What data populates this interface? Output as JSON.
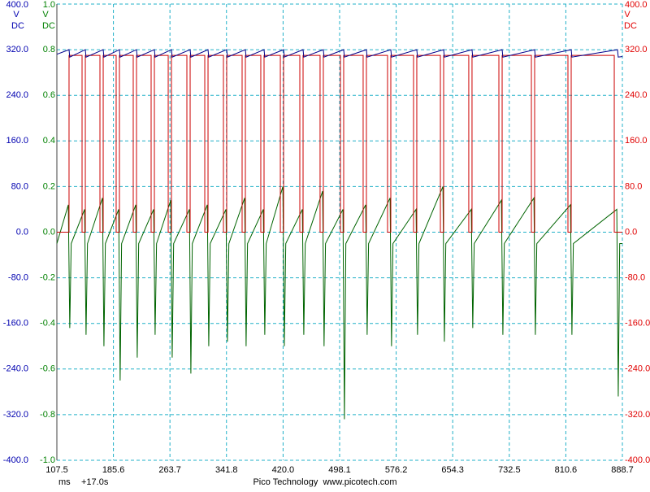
{
  "chart_data": {
    "type": "line",
    "x_unit": "ms",
    "x_offset": "+17.0s",
    "footer": "Pico Technology  www.picotech.com",
    "grid": true,
    "xlim": [
      107.5,
      888.7
    ],
    "xticks": [
      107.5,
      185.6,
      263.7,
      341.8,
      {
        "value": 420,
        "label": "420.0"
      },
      498.1,
      576.2,
      654.3,
      732.5,
      810.6,
      888.7
    ],
    "y_label": "V",
    "y_coupling": "DC",
    "ylim": [
      -400,
      400
    ],
    "yticks": [
      {
        "value": 400,
        "label": "400.0"
      },
      {
        "value": 320,
        "label": "320.0"
      },
      {
        "value": 240,
        "label": "240.0"
      },
      {
        "value": 160,
        "label": "160.0"
      },
      {
        "value": 80,
        "label": "80.0"
      },
      {
        "value": 0,
        "label": "0.0"
      },
      {
        "value": -80,
        "label": "-80.0"
      },
      {
        "value": -160,
        "label": "-160.0"
      },
      {
        "value": -240,
        "label": "-240.0"
      },
      {
        "value": -320,
        "label": "-320.0"
      },
      {
        "value": -400,
        "label": "-400.0"
      }
    ],
    "y2_label": "V",
    "y2_coupling": "DC",
    "y2lim": [
      -1,
      1
    ],
    "y2ticks": [
      {
        "value": 1,
        "label": "1.0"
      },
      0.8,
      0.6,
      0.4,
      0.2,
      {
        "value": 0,
        "label": "0.0"
      },
      -0.2,
      -0.4,
      -0.6,
      -0.8,
      {
        "value": -1,
        "label": "-1.0"
      }
    ],
    "y3_label": "V",
    "y3_coupling": "DC",
    "y3lim": [
      -400,
      400
    ],
    "y3ticks": [
      {
        "value": 400,
        "label": "400.0"
      },
      {
        "value": 320,
        "label": "320.0"
      },
      {
        "value": 240,
        "label": "240.0"
      },
      {
        "value": 160,
        "label": "160.0"
      },
      {
        "value": 80,
        "label": "80.0"
      },
      {
        "value": 0,
        "label": "0.0"
      },
      {
        "value": -80,
        "label": "-80.0"
      },
      {
        "value": -160,
        "label": "-160.0"
      },
      {
        "value": -240,
        "label": "-240.0"
      },
      {
        "value": -320,
        "label": "-320.0"
      },
      {
        "value": -400,
        "label": "-400.0"
      }
    ],
    "series": [
      {
        "color": "#006400",
        "axis": "y2",
        "x": [
          107.5,
          123.3,
          125.3,
          127.3,
          145.8,
          147.8,
          149.8,
          170.5,
          172.5,
          174.5,
          192.9,
          194.9,
          196.9,
          216.5,
          218.5,
          220.5,
          241.2,
          243.2,
          245.2,
          264.8,
          266.8,
          268.8,
          290.6,
          292.6,
          294.6,
          315.3,
          317.3,
          319.3,
          341.1,
          343.1,
          345.1,
          366.9,
          368.9,
          370.9,
          392.7,
          394.7,
          396.7,
          419.7,
          421.7,
          423.7,
          446.6,
          448.6,
          450.6,
          474.6,
          476.6,
          478.6,
          502.7,
          504.7,
          506.7,
          534.1,
          536.1,
          538.1,
          567.8,
          569.8,
          571.8,
          603.7,
          605.7,
          607.7,
          640.8,
          642.8,
          644.8,
          680.0,
          682.0,
          684.0,
          721.6,
          723.6,
          725.6,
          766.5,
          768.5,
          770.5,
          817.0,
          819.0,
          821.0,
          881.0,
          883.0,
          885.0,
          888.7
        ],
        "values": [
          -0.05,
          0.12,
          -0.42,
          -0.05,
          0.1,
          -0.45,
          -0.05,
          0.15,
          -0.5,
          -0.05,
          0.1,
          -0.65,
          -0.05,
          0.12,
          -0.55,
          -0.05,
          0.1,
          -0.45,
          -0.05,
          0.14,
          -0.55,
          -0.05,
          0.1,
          -0.62,
          -0.05,
          0.12,
          -0.5,
          -0.05,
          0.1,
          -0.48,
          -0.05,
          0.15,
          -0.5,
          -0.05,
          0.1,
          -0.45,
          -0.05,
          0.2,
          -0.5,
          -0.05,
          0.1,
          -0.45,
          -0.05,
          0.18,
          -0.5,
          -0.05,
          0.1,
          -0.82,
          -0.05,
          0.12,
          -0.45,
          -0.05,
          0.15,
          -0.5,
          -0.05,
          0.1,
          -0.45,
          -0.05,
          0.2,
          -0.48,
          -0.05,
          0.1,
          -0.42,
          -0.05,
          0.14,
          -0.45,
          -0.05,
          0.15,
          -0.45,
          -0.05,
          0.12,
          -0.45,
          -0.05,
          0.1,
          -0.72,
          -0.05,
          -0.05
        ]
      },
      {
        "color": "#cc0000",
        "axis": "y3",
        "x": [
          107.5,
          124.3,
          124.3,
          142.3,
          142.3,
          146.8,
          146.8,
          167.0,
          167.0,
          171.5,
          171.5,
          189.4,
          189.4,
          193.9,
          193.9,
          213.0,
          213.0,
          217.5,
          217.5,
          237.7,
          237.7,
          242.2,
          242.2,
          261.3,
          261.3,
          265.8,
          265.8,
          287.1,
          287.1,
          291.6,
          291.6,
          311.8,
          311.8,
          316.3,
          316.3,
          337.6,
          337.6,
          342.1,
          342.1,
          363.4,
          363.4,
          367.9,
          367.9,
          389.2,
          389.2,
          393.7,
          393.7,
          416.2,
          416.2,
          420.7,
          420.7,
          443.1,
          443.1,
          447.6,
          447.6,
          471.1,
          471.1,
          475.6,
          475.6,
          499.2,
          499.2,
          503.7,
          503.7,
          530.6,
          530.6,
          535.1,
          535.1,
          564.3,
          564.3,
          568.8,
          568.8,
          600.2,
          600.2,
          604.7,
          604.7,
          637.3,
          637.3,
          641.8,
          641.8,
          676.5,
          676.5,
          681.0,
          681.0,
          718.1,
          718.1,
          722.6,
          722.6,
          763.0,
          763.0,
          767.5,
          767.5,
          813.5,
          813.5,
          818.0,
          818.0,
          877.5,
          877.5,
          888.7
        ],
        "values": [
          0,
          0,
          310,
          310,
          0,
          0,
          310,
          310,
          0,
          0,
          310,
          310,
          0,
          0,
          310,
          310,
          0,
          0,
          310,
          310,
          0,
          0,
          310,
          310,
          0,
          0,
          310,
          310,
          0,
          0,
          310,
          310,
          0,
          0,
          310,
          310,
          0,
          0,
          310,
          310,
          0,
          0,
          310,
          310,
          0,
          0,
          310,
          310,
          0,
          0,
          310,
          310,
          0,
          0,
          310,
          310,
          0,
          0,
          310,
          310,
          0,
          0,
          310,
          310,
          0,
          0,
          310,
          310,
          0,
          0,
          310,
          310,
          0,
          0,
          310,
          310,
          0,
          0,
          310,
          310,
          0,
          0,
          310,
          310,
          0,
          0,
          310,
          310,
          0,
          0,
          310,
          310,
          0,
          0,
          310,
          310,
          0,
          0
        ]
      },
      {
        "color": "#00008b",
        "axis": "y",
        "x": [
          107.5,
          124.3,
          125.3,
          146.8,
          147.8,
          171.5,
          172.5,
          193.9,
          194.9,
          217.5,
          218.5,
          242.2,
          243.2,
          265.8,
          266.8,
          291.6,
          292.6,
          316.3,
          317.3,
          342.1,
          343.1,
          367.9,
          368.9,
          393.7,
          394.7,
          420.7,
          421.7,
          447.6,
          448.6,
          475.6,
          476.6,
          503.7,
          504.7,
          535.1,
          536.1,
          568.8,
          569.8,
          604.7,
          605.7,
          641.8,
          642.8,
          681.0,
          682.0,
          722.6,
          723.6,
          767.5,
          768.5,
          818.0,
          819.0,
          882.0,
          883.0,
          888.7
        ],
        "values": [
          312,
          320,
          307,
          320,
          307,
          320,
          307,
          320,
          307,
          320,
          307,
          320,
          307,
          320,
          307,
          320,
          307,
          320,
          307,
          320,
          307,
          320,
          307,
          320,
          307,
          320,
          307,
          320,
          307,
          320,
          307,
          320,
          307,
          320,
          307,
          320,
          307,
          320,
          307,
          320,
          307,
          320,
          307,
          320,
          307,
          320,
          307,
          320,
          307,
          320,
          307,
          308
        ]
      }
    ]
  }
}
